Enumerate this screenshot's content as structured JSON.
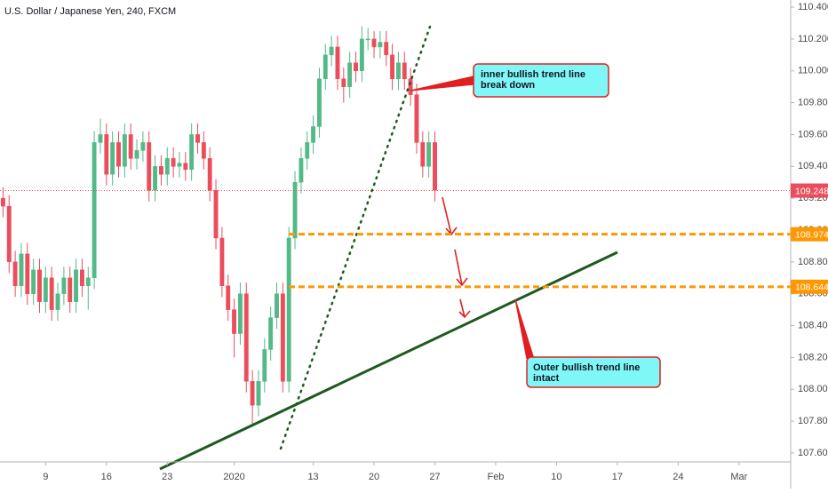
{
  "chart_data": {
    "type": "candlestick",
    "title": "U.S. Dollar / Japanese Yen, 240, FXCM",
    "categories": [
      null,
      null,
      null,
      null,
      null,
      null,
      null,
      "9",
      null,
      null,
      null,
      null,
      null,
      null,
      null,
      null,
      null,
      "16",
      null,
      null,
      null,
      null,
      null,
      null,
      null,
      null,
      null,
      "23",
      null,
      null,
      null,
      null,
      null,
      null,
      null,
      null,
      null,
      null,
      "2020",
      null,
      null,
      null,
      null,
      null,
      null,
      null,
      null,
      null,
      null,
      null,
      null,
      "13",
      null,
      null,
      null,
      null,
      null,
      null,
      null,
      null,
      null,
      "20",
      null,
      null,
      null,
      null,
      null,
      null,
      null,
      null,
      null,
      "27",
      null,
      null,
      null,
      null,
      null,
      null,
      null,
      null,
      null,
      "Feb",
      null,
      null,
      null,
      null,
      null,
      null,
      null,
      null,
      null,
      "10",
      null,
      null,
      null,
      null,
      null,
      null,
      null,
      null,
      null,
      "17",
      null,
      null,
      null,
      null,
      null,
      null,
      null,
      null,
      null,
      "24",
      null,
      null,
      null,
      null,
      null,
      null,
      null,
      null,
      null,
      "Mar",
      null,
      null,
      null,
      null,
      null,
      null,
      null,
      null
    ],
    "open": [
      109.2,
      109.15,
      108.8,
      108.65,
      108.85,
      108.6,
      108.75,
      108.55,
      108.7,
      108.5,
      108.6,
      108.7,
      108.55,
      108.75,
      108.65,
      108.7,
      109.55,
      109.6,
      109.35,
      109.55,
      109.4,
      109.6,
      109.45,
      109.5,
      109.55,
      109.25,
      109.4,
      109.35,
      109.45,
      109.4,
      109.42,
      109.38,
      109.6,
      109.55,
      109.45,
      109.25,
      108.95,
      108.65,
      108.5,
      108.35,
      108.6,
      108.05,
      107.9,
      108.05,
      108.25,
      108.45,
      108.6,
      108.05,
      108.95,
      109.3,
      109.45,
      109.55,
      109.65,
      109.95,
      110.1,
      110.15,
      109.95,
      109.9,
      110.05,
      110.0,
      110.2,
      110.2,
      110.15,
      110.18,
      110.1,
      109.95,
      110.05,
      109.95,
      109.85,
      109.55,
      109.4,
      109.55,
      null,
      null,
      null,
      null,
      null,
      null,
      null,
      null,
      null,
      null,
      null,
      null,
      null,
      null,
      null,
      null,
      null,
      null,
      null,
      null,
      null,
      null,
      null,
      null,
      null,
      null,
      null,
      null,
      null,
      null,
      null,
      null,
      null,
      null,
      null,
      null,
      null,
      null,
      null,
      null,
      null,
      null,
      null,
      null,
      null,
      null,
      null,
      null,
      null,
      null,
      null,
      null,
      null,
      null,
      null,
      null,
      null,
      null
    ],
    "high": [
      109.27,
      109.22,
      108.87,
      108.92,
      108.92,
      108.82,
      108.82,
      108.77,
      108.77,
      108.67,
      108.77,
      108.77,
      108.82,
      108.82,
      108.77,
      109.62,
      109.7,
      109.67,
      109.62,
      109.62,
      109.67,
      109.67,
      109.57,
      109.62,
      109.62,
      109.47,
      109.47,
      109.52,
      109.52,
      109.49,
      109.49,
      109.67,
      109.67,
      109.62,
      109.52,
      109.32,
      109.02,
      108.72,
      108.57,
      108.67,
      108.67,
      108.12,
      108.12,
      108.32,
      108.52,
      108.67,
      108.67,
      109.02,
      109.37,
      109.52,
      109.62,
      109.72,
      110.02,
      110.17,
      110.22,
      110.22,
      110.02,
      110.12,
      110.12,
      110.28,
      110.27,
      110.25,
      110.25,
      110.25,
      110.17,
      110.12,
      110.12,
      110.02,
      109.92,
      109.62,
      109.62,
      109.62,
      null,
      null,
      null,
      null,
      null,
      null,
      null,
      null,
      null,
      null,
      null,
      null,
      null,
      null,
      null,
      null,
      null,
      null,
      null,
      null,
      null,
      null,
      null,
      null,
      null,
      null,
      null,
      null,
      null,
      null,
      null,
      null,
      null,
      null,
      null,
      null,
      null,
      null,
      null,
      null,
      null,
      null,
      null,
      null,
      null,
      null,
      null,
      null,
      null,
      null,
      null,
      null,
      null,
      null,
      null,
      null,
      null,
      null
    ],
    "low": [
      109.08,
      108.73,
      108.58,
      108.58,
      108.53,
      108.53,
      108.48,
      108.48,
      108.43,
      108.43,
      108.53,
      108.48,
      108.48,
      108.58,
      108.5,
      108.63,
      109.48,
      109.28,
      109.28,
      109.33,
      109.33,
      109.38,
      109.38,
      109.43,
      109.18,
      109.18,
      109.28,
      109.28,
      109.33,
      109.33,
      109.31,
      109.31,
      109.48,
      109.38,
      109.18,
      108.88,
      108.58,
      108.43,
      108.2,
      108.28,
      107.98,
      107.78,
      107.83,
      107.98,
      108.18,
      108.38,
      107.98,
      107.98,
      108.88,
      109.23,
      109.38,
      109.48,
      109.58,
      109.88,
      110.03,
      109.88,
      109.8,
      109.83,
      109.93,
      109.93,
      110.13,
      110.08,
      110.08,
      110.03,
      109.88,
      109.88,
      109.88,
      109.78,
      109.48,
      109.33,
      109.33,
      109.18,
      null,
      null,
      null,
      null,
      null,
      null,
      null,
      null,
      null,
      null,
      null,
      null,
      null,
      null,
      null,
      null,
      null,
      null,
      null,
      null,
      null,
      null,
      null,
      null,
      null,
      null,
      null,
      null,
      null,
      null,
      null,
      null,
      null,
      null,
      null,
      null,
      null,
      null,
      null,
      null,
      null,
      null,
      null,
      null,
      null,
      null,
      null,
      null,
      null,
      null,
      null,
      null,
      null,
      null,
      null,
      null,
      null,
      null
    ],
    "close": [
      109.15,
      108.8,
      108.65,
      108.85,
      108.6,
      108.75,
      108.55,
      108.7,
      108.5,
      108.6,
      108.7,
      108.55,
      108.75,
      108.65,
      108.7,
      109.55,
      109.6,
      109.35,
      109.55,
      109.4,
      109.6,
      109.45,
      109.5,
      109.55,
      109.25,
      109.4,
      109.35,
      109.45,
      109.4,
      109.42,
      109.38,
      109.6,
      109.55,
      109.45,
      109.25,
      108.95,
      108.65,
      108.5,
      108.35,
      108.6,
      108.05,
      107.9,
      108.05,
      108.25,
      108.45,
      108.6,
      108.05,
      108.95,
      109.3,
      109.45,
      109.55,
      109.65,
      109.95,
      110.1,
      110.15,
      109.95,
      109.9,
      110.05,
      110.0,
      110.2,
      110.2,
      110.15,
      110.18,
      110.1,
      109.95,
      110.05,
      109.95,
      109.85,
      109.55,
      109.4,
      109.55,
      109.25,
      null,
      null,
      null,
      null,
      null,
      null,
      null,
      null,
      null,
      null,
      null,
      null,
      null,
      null,
      null,
      null,
      null,
      null,
      null,
      null,
      null,
      null,
      null,
      null,
      null,
      null,
      null,
      null,
      null,
      null,
      null,
      null,
      null,
      null,
      null,
      null,
      null,
      null,
      null,
      null,
      null,
      null,
      null,
      null,
      null,
      null,
      null,
      null,
      null,
      null,
      null,
      null,
      null,
      null,
      null,
      null,
      null,
      null
    ],
    "up_color": "#53b987",
    "down_color": "#eb4d5c",
    "ylim": [
      107.544,
      110.445
    ],
    "yticks": [
      {
        "value": 107.6,
        "label": "107.600"
      },
      {
        "value": 107.8,
        "label": "107.800"
      },
      {
        "value": 108.0,
        "label": "108.000"
      },
      {
        "value": 108.2,
        "label": "108.200"
      },
      {
        "value": 108.4,
        "label": "108.400"
      },
      {
        "value": 108.6,
        "label": "108.600"
      },
      {
        "value": 108.8,
        "label": "108.800"
      },
      {
        "value": 109.0,
        "label": "109.000"
      },
      {
        "value": 109.2,
        "label": "109.200"
      },
      {
        "value": 109.4,
        "label": "109.400"
      },
      {
        "value": 109.6,
        "label": "109.600"
      },
      {
        "value": 109.8,
        "label": "109.800"
      },
      {
        "value": 110.0,
        "label": "110.000"
      },
      {
        "value": 110.2,
        "label": "110.200"
      },
      {
        "value": 110.4,
        "label": "110.400"
      }
    ],
    "last_price": 109.248,
    "last_price_color": "#eb4d5c",
    "levels": [
      108.974,
      108.644
    ],
    "level_color": "#ff9800",
    "annotations": [
      {
        "lines": [
          "inner bullish trend line",
          "break down"
        ]
      },
      {
        "lines": [
          "Outer bullish trend line",
          "intact"
        ]
      }
    ]
  }
}
